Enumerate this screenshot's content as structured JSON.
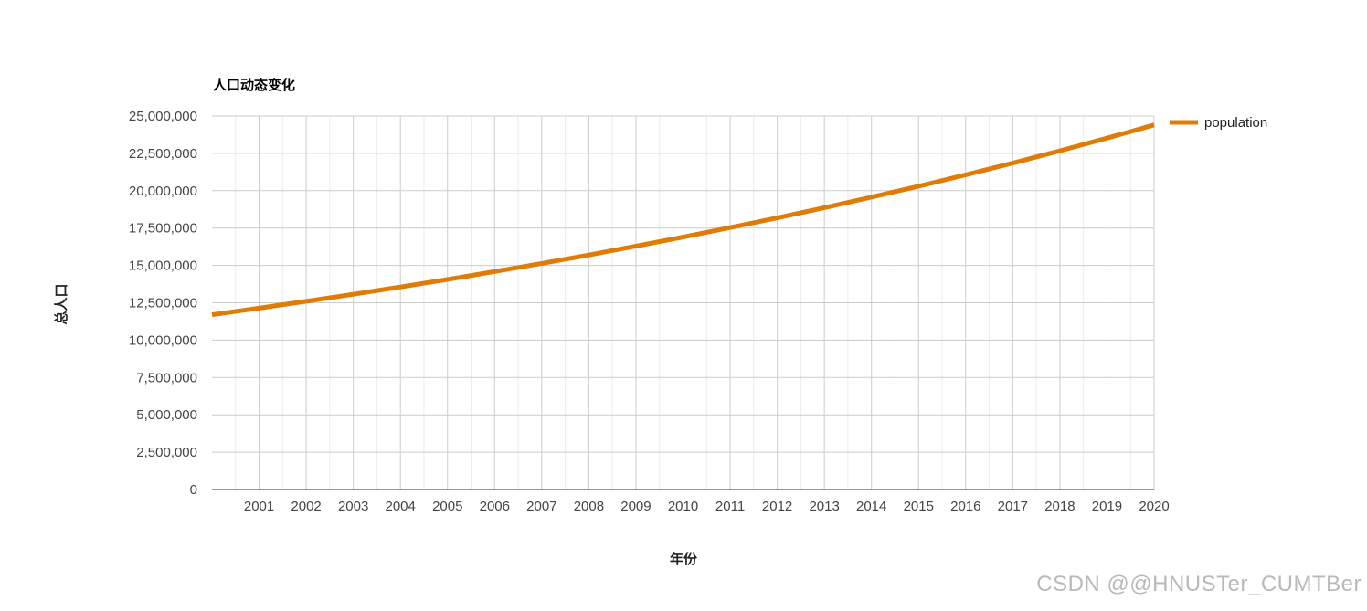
{
  "chart_data": {
    "type": "line",
    "title": "人口动态变化",
    "xlabel": "年份",
    "ylabel": "总人口",
    "x": [
      2000,
      2001,
      2002,
      2003,
      2004,
      2005,
      2006,
      2007,
      2008,
      2009,
      2010,
      2011,
      2012,
      2013,
      2014,
      2015,
      2016,
      2017,
      2018,
      2019,
      2020
    ],
    "x_ticks": [
      2001,
      2002,
      2003,
      2004,
      2005,
      2006,
      2007,
      2008,
      2009,
      2010,
      2011,
      2012,
      2013,
      2014,
      2015,
      2016,
      2017,
      2018,
      2019,
      2020
    ],
    "xlim": [
      2000,
      2020
    ],
    "ylim": [
      0,
      25000000
    ],
    "y_ticks": [
      0,
      2500000,
      5000000,
      7500000,
      10000000,
      12500000,
      15000000,
      17500000,
      20000000,
      22500000,
      25000000
    ],
    "y_tick_labels": [
      "0",
      "2,500,000",
      "5,000,000",
      "7,500,000",
      "10,000,000",
      "12,500,000",
      "15,000,000",
      "17,500,000",
      "20,000,000",
      "22,500,000",
      "25,000,000"
    ],
    "grid": true,
    "legend_position": "right",
    "series": [
      {
        "name": "population",
        "color": "#e07b06",
        "values": [
          11700000,
          12140000,
          12600000,
          13070000,
          13560000,
          14060000,
          14590000,
          15130000,
          15700000,
          16290000,
          16900000,
          17530000,
          18180000,
          18860000,
          19570000,
          20300000,
          21060000,
          21850000,
          22670000,
          23520000,
          24400000
        ]
      }
    ]
  },
  "watermark": "CSDN @@HNUSTer_CUMTBer"
}
